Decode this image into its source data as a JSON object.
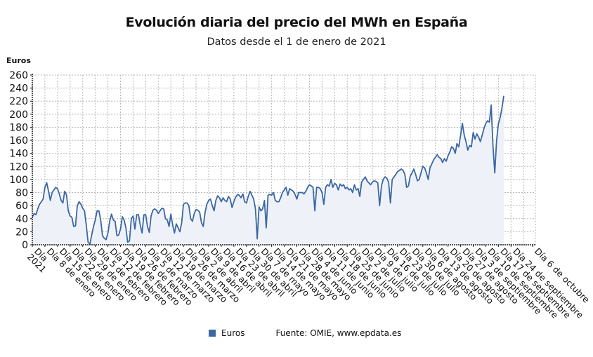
{
  "chart_data": {
    "type": "area",
    "title": "Evolución diaria del precio del MWh en España",
    "subtitle": "Datos desde el 1 de enero de 2021",
    "ylabel": "Euros",
    "xlabel": "",
    "ylim": [
      0,
      260
    ],
    "yticks": [
      0,
      20,
      40,
      60,
      80,
      100,
      120,
      140,
      160,
      180,
      200,
      220,
      240,
      260
    ],
    "grid": true,
    "legend_position": "bottom",
    "colors": {
      "line": "#3b67a3",
      "fill": "#eef2f8",
      "grid": "#b8b8b8"
    },
    "xrange_days": [
      0,
      278
    ],
    "xtick_labels": [
      {
        "day": 0,
        "label": "Día 1 de enero 2021"
      },
      {
        "day": 7,
        "label": "Día 8 de enero"
      },
      {
        "day": 14,
        "label": "Día 15 de enero"
      },
      {
        "day": 21,
        "label": "Día 22 de enero"
      },
      {
        "day": 28,
        "label": "Día 29 de enero"
      },
      {
        "day": 35,
        "label": "Día 5 de febrero"
      },
      {
        "day": 42,
        "label": "Día 12 de febrero"
      },
      {
        "day": 49,
        "label": "Día 19 de febrero"
      },
      {
        "day": 56,
        "label": "Día 26 de febrero"
      },
      {
        "day": 63,
        "label": "Día 5 de marzo"
      },
      {
        "day": 70,
        "label": "Día 12 de marzo"
      },
      {
        "day": 77,
        "label": "Día 19 de marzo"
      },
      {
        "day": 84,
        "label": "Día 26 de marzo"
      },
      {
        "day": 91,
        "label": "Día 2 de abril"
      },
      {
        "day": 98,
        "label": "Día 9 de abril"
      },
      {
        "day": 105,
        "label": "Día 16 de abril"
      },
      {
        "day": 112,
        "label": "Día 23 de abril"
      },
      {
        "day": 119,
        "label": "Día 30 de abril"
      },
      {
        "day": 126,
        "label": "Día 7 de mayo"
      },
      {
        "day": 133,
        "label": "Día 14 de mayo"
      },
      {
        "day": 140,
        "label": "Día 21 de mayo"
      },
      {
        "day": 147,
        "label": "Día 28 de mayo"
      },
      {
        "day": 154,
        "label": "Día 4 de junio"
      },
      {
        "day": 161,
        "label": "Día 11 de junio"
      },
      {
        "day": 168,
        "label": "Día 18 de junio"
      },
      {
        "day": 175,
        "label": "Día 25 de junio"
      },
      {
        "day": 182,
        "label": "Día 2 de julio"
      },
      {
        "day": 189,
        "label": "Día 9 de julio"
      },
      {
        "day": 196,
        "label": "Día 16 de julio"
      },
      {
        "day": 203,
        "label": "Día 23 de julio"
      },
      {
        "day": 210,
        "label": "Día 30 de julio"
      },
      {
        "day": 217,
        "label": "Día 6 de agosto"
      },
      {
        "day": 224,
        "label": "Día 13 de agosto"
      },
      {
        "day": 231,
        "label": "Día 20 de agosto"
      },
      {
        "day": 238,
        "label": "Día 27 de agosto"
      },
      {
        "day": 245,
        "label": "Día 3 de septiembre"
      },
      {
        "day": 252,
        "label": "Día 10 de septiembre"
      },
      {
        "day": 259,
        "label": "Día 17 de septiembre"
      },
      {
        "day": 266,
        "label": "Día 24 de septiembre"
      },
      {
        "day": 278,
        "label": "Día 6 de octubre"
      }
    ],
    "series": [
      {
        "name": "Euros",
        "points": [
          [
            0,
            42
          ],
          [
            1,
            48
          ],
          [
            2,
            46
          ],
          [
            3,
            55
          ],
          [
            4,
            62
          ],
          [
            5,
            66
          ],
          [
            6,
            70
          ],
          [
            7,
            88
          ],
          [
            8,
            95
          ],
          [
            9,
            82
          ],
          [
            10,
            68
          ],
          [
            11,
            80
          ],
          [
            12,
            84
          ],
          [
            13,
            88
          ],
          [
            14,
            86
          ],
          [
            15,
            78
          ],
          [
            16,
            68
          ],
          [
            17,
            64
          ],
          [
            18,
            82
          ],
          [
            19,
            76
          ],
          [
            20,
            52
          ],
          [
            21,
            44
          ],
          [
            22,
            42
          ],
          [
            23,
            28
          ],
          [
            24,
            29
          ],
          [
            25,
            60
          ],
          [
            26,
            66
          ],
          [
            27,
            62
          ],
          [
            28,
            56
          ],
          [
            29,
            52
          ],
          [
            30,
            30
          ],
          [
            31,
            4
          ],
          [
            32,
            1
          ],
          [
            33,
            15
          ],
          [
            34,
            28
          ],
          [
            35,
            38
          ],
          [
            36,
            52
          ],
          [
            37,
            52
          ],
          [
            38,
            38
          ],
          [
            39,
            14
          ],
          [
            40,
            10
          ],
          [
            41,
            8
          ],
          [
            42,
            18
          ],
          [
            43,
            36
          ],
          [
            44,
            47
          ],
          [
            45,
            38
          ],
          [
            46,
            36
          ],
          [
            47,
            14
          ],
          [
            48,
            15
          ],
          [
            49,
            24
          ],
          [
            50,
            43
          ],
          [
            51,
            38
          ],
          [
            52,
            26
          ],
          [
            53,
            4
          ],
          [
            54,
            6
          ],
          [
            55,
            40
          ],
          [
            56,
            44
          ],
          [
            57,
            24
          ],
          [
            58,
            46
          ],
          [
            59,
            46
          ],
          [
            60,
            30
          ],
          [
            61,
            18
          ],
          [
            62,
            46
          ],
          [
            63,
            46
          ],
          [
            64,
            28
          ],
          [
            65,
            19
          ],
          [
            66,
            44
          ],
          [
            67,
            53
          ],
          [
            68,
            55
          ],
          [
            69,
            53
          ],
          [
            70,
            48
          ],
          [
            71,
            52
          ],
          [
            72,
            56
          ],
          [
            73,
            55
          ],
          [
            74,
            40
          ],
          [
            75,
            38
          ],
          [
            76,
            28
          ],
          [
            77,
            47
          ],
          [
            78,
            30
          ],
          [
            79,
            18
          ],
          [
            80,
            32
          ],
          [
            81,
            26
          ],
          [
            82,
            20
          ],
          [
            83,
            34
          ],
          [
            84,
            62
          ],
          [
            85,
            64
          ],
          [
            86,
            64
          ],
          [
            87,
            60
          ],
          [
            88,
            40
          ],
          [
            89,
            36
          ],
          [
            90,
            48
          ],
          [
            91,
            54
          ],
          [
            92,
            53
          ],
          [
            93,
            50
          ],
          [
            94,
            34
          ],
          [
            95,
            28
          ],
          [
            96,
            50
          ],
          [
            97,
            62
          ],
          [
            98,
            68
          ],
          [
            99,
            70
          ],
          [
            100,
            60
          ],
          [
            101,
            52
          ],
          [
            102,
            68
          ],
          [
            103,
            75
          ],
          [
            104,
            72
          ],
          [
            105,
            66
          ],
          [
            106,
            72
          ],
          [
            107,
            68
          ],
          [
            108,
            66
          ],
          [
            109,
            74
          ],
          [
            110,
            70
          ],
          [
            111,
            57
          ],
          [
            112,
            66
          ],
          [
            113,
            73
          ],
          [
            114,
            77
          ],
          [
            115,
            76
          ],
          [
            116,
            72
          ],
          [
            117,
            78
          ],
          [
            118,
            66
          ],
          [
            119,
            64
          ],
          [
            120,
            74
          ],
          [
            121,
            82
          ],
          [
            122,
            76
          ],
          [
            123,
            70
          ],
          [
            124,
            55
          ],
          [
            125,
            9
          ],
          [
            126,
            58
          ],
          [
            127,
            52
          ],
          [
            128,
            55
          ],
          [
            129,
            68
          ],
          [
            130,
            26
          ],
          [
            131,
            76
          ],
          [
            132,
            77
          ],
          [
            133,
            76
          ],
          [
            134,
            80
          ],
          [
            135,
            68
          ],
          [
            136,
            66
          ],
          [
            137,
            66
          ],
          [
            138,
            72
          ],
          [
            139,
            80
          ],
          [
            140,
            84
          ],
          [
            141,
            88
          ],
          [
            142,
            76
          ],
          [
            143,
            86
          ],
          [
            144,
            84
          ],
          [
            145,
            82
          ],
          [
            146,
            77
          ],
          [
            147,
            70
          ],
          [
            148,
            80
          ],
          [
            149,
            80
          ],
          [
            150,
            80
          ],
          [
            151,
            78
          ],
          [
            152,
            82
          ],
          [
            153,
            88
          ],
          [
            154,
            92
          ],
          [
            155,
            90
          ],
          [
            156,
            88
          ],
          [
            157,
            52
          ],
          [
            158,
            88
          ],
          [
            159,
            88
          ],
          [
            160,
            86
          ],
          [
            161,
            80
          ],
          [
            162,
            62
          ],
          [
            163,
            88
          ],
          [
            164,
            92
          ],
          [
            165,
            90
          ],
          [
            166,
            100
          ],
          [
            167,
            88
          ],
          [
            168,
            94
          ],
          [
            169,
            92
          ],
          [
            170,
            84
          ],
          [
            171,
            93
          ],
          [
            172,
            90
          ],
          [
            173,
            92
          ],
          [
            174,
            86
          ],
          [
            175,
            88
          ],
          [
            176,
            84
          ],
          [
            177,
            86
          ],
          [
            178,
            80
          ],
          [
            179,
            92
          ],
          [
            180,
            84
          ],
          [
            181,
            86
          ],
          [
            182,
            74
          ],
          [
            183,
            96
          ],
          [
            184,
            100
          ],
          [
            185,
            104
          ],
          [
            186,
            98
          ],
          [
            187,
            95
          ],
          [
            188,
            92
          ],
          [
            189,
            96
          ],
          [
            190,
            98
          ],
          [
            191,
            97
          ],
          [
            192,
            95
          ],
          [
            193,
            60
          ],
          [
            194,
            90
          ],
          [
            195,
            100
          ],
          [
            196,
            104
          ],
          [
            197,
            102
          ],
          [
            198,
            96
          ],
          [
            199,
            64
          ],
          [
            200,
            100
          ],
          [
            201,
            104
          ],
          [
            202,
            108
          ],
          [
            203,
            112
          ],
          [
            204,
            114
          ],
          [
            205,
            116
          ],
          [
            206,
            114
          ],
          [
            207,
            108
          ],
          [
            208,
            88
          ],
          [
            209,
            90
          ],
          [
            210,
            105
          ],
          [
            211,
            110
          ],
          [
            212,
            116
          ],
          [
            213,
            108
          ],
          [
            214,
            98
          ],
          [
            215,
            100
          ],
          [
            216,
            110
          ],
          [
            217,
            120
          ],
          [
            218,
            118
          ],
          [
            219,
            110
          ],
          [
            220,
            100
          ],
          [
            221,
            118
          ],
          [
            222,
            124
          ],
          [
            223,
            130
          ],
          [
            224,
            134
          ],
          [
            225,
            138
          ],
          [
            226,
            134
          ],
          [
            227,
            132
          ],
          [
            228,
            126
          ],
          [
            229,
            132
          ],
          [
            230,
            128
          ],
          [
            231,
            136
          ],
          [
            232,
            142
          ],
          [
            233,
            150
          ],
          [
            234,
            148
          ],
          [
            235,
            140
          ],
          [
            236,
            155
          ],
          [
            237,
            150
          ],
          [
            238,
            168
          ],
          [
            239,
            186
          ],
          [
            240,
            168
          ],
          [
            241,
            158
          ],
          [
            242,
            145
          ],
          [
            243,
            152
          ],
          [
            244,
            150
          ],
          [
            245,
            172
          ],
          [
            246,
            162
          ],
          [
            247,
            170
          ],
          [
            248,
            165
          ],
          [
            249,
            158
          ],
          [
            250,
            168
          ],
          [
            251,
            178
          ],
          [
            252,
            186
          ],
          [
            253,
            190
          ],
          [
            254,
            188
          ],
          [
            255,
            214
          ],
          [
            256,
            150
          ],
          [
            257,
            110
          ],
          [
            258,
            160
          ],
          [
            259,
            185
          ],
          [
            260,
            195
          ],
          [
            261,
            210
          ],
          [
            262,
            228
          ]
        ]
      }
    ]
  },
  "legend": {
    "items": [
      {
        "label": "Euros"
      }
    ]
  },
  "source": "Fuente: OMIE, www.epdata.es"
}
